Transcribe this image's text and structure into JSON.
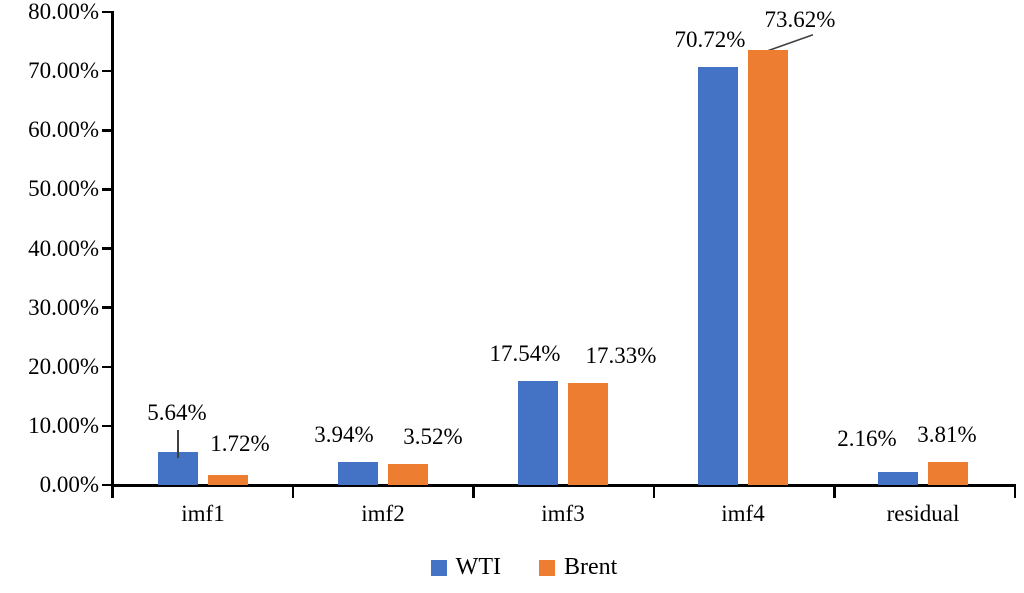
{
  "chart_data": {
    "type": "bar",
    "title": "",
    "xlabel": "",
    "ylabel": "",
    "categories": [
      "imf1",
      "imf2",
      "imf3",
      "imf4",
      "residual"
    ],
    "series": [
      {
        "name": "WTI",
        "color": "#4472C4",
        "values": [
          5.64,
          3.94,
          17.54,
          70.72,
          2.16
        ],
        "labels": [
          "5.64%",
          "3.94%",
          "17.54%",
          "70.72%",
          "2.16%"
        ]
      },
      {
        "name": "Brent",
        "color": "#ED7D31",
        "values": [
          1.72,
          3.52,
          17.33,
          73.62,
          3.81
        ],
        "labels": [
          "1.72%",
          "3.52%",
          "17.33%",
          "73.62%",
          "3.81%"
        ]
      }
    ],
    "ylim": [
      0,
      80
    ],
    "y_ticks": [
      "0.00%",
      "10.00%",
      "20.00%",
      "30.00%",
      "40.00%",
      "50.00%",
      "60.00%",
      "70.00%",
      "80.00%"
    ],
    "grid": false,
    "legend_position": "bottom",
    "axis_color": "#000000"
  }
}
